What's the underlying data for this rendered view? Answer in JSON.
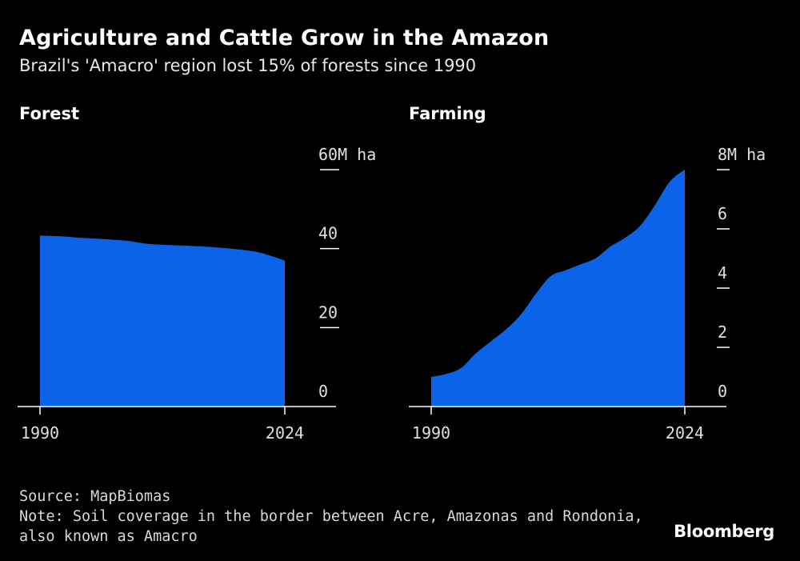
{
  "header": {
    "title": "Agriculture and Cattle Grow in the Amazon",
    "subtitle": "Brazil's 'Amacro' region lost 15% of forests since 1990"
  },
  "colors": {
    "background": "#000000",
    "area": "#0a63e8",
    "axis": "#ffffff",
    "text": "#ffffff"
  },
  "chart_data": [
    {
      "type": "area",
      "title": "Forest",
      "unit": "M ha",
      "x": [
        1990,
        1993,
        1996,
        1999,
        2002,
        2005,
        2008,
        2011,
        2014,
        2017,
        2020,
        2022,
        2024
      ],
      "values": [
        43.3,
        43.1,
        42.7,
        42.4,
        42.0,
        41.2,
        40.9,
        40.7,
        40.4,
        39.9,
        39.2,
        38.2,
        37.0
      ],
      "xlim": [
        1990,
        2024
      ],
      "ylim": [
        0,
        60
      ],
      "x_tick_labels": [
        "1990",
        "2024"
      ],
      "y_ticks": [
        0,
        20,
        40,
        60
      ],
      "y_tick_labels": [
        "0",
        "20",
        "40",
        "60M ha"
      ],
      "grid": false
    },
    {
      "type": "area",
      "title": "Farming",
      "unit": "M ha",
      "x": [
        1990,
        1992,
        1994,
        1996,
        1998,
        2000,
        2002,
        2004,
        2006,
        2008,
        2010,
        2012,
        2014,
        2016,
        2018,
        2020,
        2022,
        2024
      ],
      "values": [
        1.0,
        1.1,
        1.3,
        1.8,
        2.2,
        2.6,
        3.1,
        3.8,
        4.4,
        4.6,
        4.8,
        5.0,
        5.4,
        5.7,
        6.1,
        6.8,
        7.6,
        8.0
      ],
      "xlim": [
        1990,
        2024
      ],
      "ylim": [
        0,
        8
      ],
      "x_tick_labels": [
        "1990",
        "2024"
      ],
      "y_ticks": [
        0,
        2,
        4,
        6,
        8
      ],
      "y_tick_labels": [
        "0",
        "2",
        "4",
        "6",
        "8M ha"
      ],
      "grid": false
    }
  ],
  "footer": {
    "source": "Source: MapBiomas",
    "note_line1": "Note: Soil coverage in the border between Acre, Amazonas and Rondonia,",
    "note_line2": "also known as Amacro"
  },
  "brand": "Bloomberg"
}
